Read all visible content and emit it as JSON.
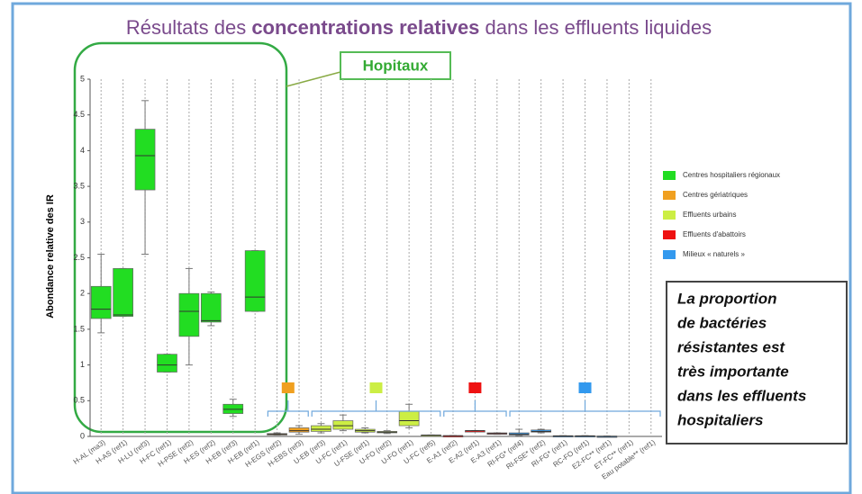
{
  "chart_data": {
    "type": "box",
    "title": [
      "Résultats des ",
      "concentrations relatives",
      " dans les effluents liquides"
    ],
    "y_label": "Abondance relative des IR",
    "ylim": [
      0,
      5
    ],
    "yticks": [
      0,
      0.5,
      1,
      1.5,
      2,
      2.5,
      3,
      3.5,
      4,
      4.5,
      5
    ],
    "grid": true,
    "groups": [
      {
        "name": "Centres hospitaliers régionaux",
        "color": "#22dd22"
      },
      {
        "name": "Centres gériatriques",
        "color": "#f0a020"
      },
      {
        "name": "Effluents urbains",
        "color": "#ccee44"
      },
      {
        "name": "Effluents d'abattoirs",
        "color": "#ee1111"
      },
      {
        "name": "Milieux « naturels »",
        "color": "#3399ee"
      }
    ],
    "categories": [
      "H-AL (ma3)",
      "H-AS (ref1)",
      "H-LU (ref3)",
      "H-FC (ref1)",
      "H-PSE (ref2)",
      "H-ES (ref2)",
      "H-EB (ref3)",
      "H-EB (ref1)",
      "H-EGS (ref2)",
      "H-EBS (ref3)",
      "U-EB (ref3)",
      "U-FC (ref1)",
      "U-FSE (ref1)",
      "U-FO (ref2)",
      "U-FO (ref1)",
      "U-FC (ref5)",
      "E-A1 (ref2)",
      "E-A2 (ref1)",
      "E-A3 (ref1)",
      "RI-FG* (ref4)",
      "RI-FSE* (ref2)",
      "RI-FG* (ref1)",
      "RC-FO (ref1)",
      "E2-FC** (ref1)",
      "ET-FC** (ref1)",
      "Eau potable** (ref1)"
    ],
    "boxes": [
      {
        "group": 0,
        "min": 1.45,
        "q1": 1.65,
        "median": 1.78,
        "q3": 2.1,
        "max": 2.55
      },
      {
        "group": 0,
        "min": 1.68,
        "q1": 1.68,
        "median": 1.7,
        "q3": 2.35,
        "max": 2.35
      },
      {
        "group": 0,
        "min": 2.55,
        "q1": 3.45,
        "median": 3.93,
        "q3": 4.3,
        "max": 4.7
      },
      {
        "group": 0,
        "min": 0.9,
        "q1": 0.9,
        "median": 1.0,
        "q3": 1.15,
        "max": 1.15
      },
      {
        "group": 0,
        "min": 1.0,
        "q1": 1.4,
        "median": 1.75,
        "q3": 2.0,
        "max": 2.35
      },
      {
        "group": 0,
        "min": 1.55,
        "q1": 1.6,
        "median": 1.62,
        "q3": 2.0,
        "max": 2.02
      },
      {
        "group": 0,
        "min": 0.28,
        "q1": 0.32,
        "median": 0.38,
        "q3": 0.45,
        "max": 0.52
      },
      {
        "group": 0,
        "min": 1.75,
        "q1": 1.75,
        "median": 1.95,
        "q3": 2.6,
        "max": 2.6
      },
      {
        "group": 1,
        "min": 0.02,
        "q1": 0.02,
        "median": 0.03,
        "q3": 0.04,
        "max": 0.05
      },
      {
        "group": 1,
        "min": 0.03,
        "q1": 0.06,
        "median": 0.08,
        "q3": 0.12,
        "max": 0.15
      },
      {
        "group": 2,
        "min": 0.05,
        "q1": 0.07,
        "median": 0.1,
        "q3": 0.15,
        "max": 0.18
      },
      {
        "group": 2,
        "min": 0.08,
        "q1": 0.1,
        "median": 0.15,
        "q3": 0.22,
        "max": 0.3
      },
      {
        "group": 2,
        "min": 0.05,
        "q1": 0.06,
        "median": 0.08,
        "q3": 0.1,
        "max": 0.12
      },
      {
        "group": 2,
        "min": 0.04,
        "q1": 0.05,
        "median": 0.06,
        "q3": 0.07,
        "max": 0.08
      },
      {
        "group": 2,
        "min": 0.12,
        "q1": 0.15,
        "median": 0.22,
        "q3": 0.35,
        "max": 0.45
      },
      {
        "group": 2,
        "min": 0.01,
        "q1": 0.01,
        "median": 0.015,
        "q3": 0.02,
        "max": 0.02
      },
      {
        "group": 3,
        "min": 0.01,
        "q1": 0.01,
        "median": 0.01,
        "q3": 0.01,
        "max": 0.01
      },
      {
        "group": 3,
        "min": 0.08,
        "q1": 0.08,
        "median": 0.08,
        "q3": 0.08,
        "max": 0.08
      },
      {
        "group": 3,
        "min": 0.03,
        "q1": 0.03,
        "median": 0.04,
        "q3": 0.05,
        "max": 0.05
      },
      {
        "group": 4,
        "min": 0.01,
        "q1": 0.02,
        "median": 0.03,
        "q3": 0.05,
        "max": 0.1
      },
      {
        "group": 4,
        "min": 0.05,
        "q1": 0.06,
        "median": 0.07,
        "q3": 0.09,
        "max": 0.1
      },
      {
        "group": 4,
        "min": 0.0,
        "q1": 0.0,
        "median": 0.005,
        "q3": 0.01,
        "max": 0.01
      },
      {
        "group": 4,
        "min": 0.0,
        "q1": 0.0,
        "median": 0.005,
        "q3": 0.01,
        "max": 0.01
      },
      {
        "group": 4,
        "min": 0.0,
        "q1": 0.0,
        "median": 0.0,
        "q3": 0.005,
        "max": 0.005
      },
      {
        "group": 4,
        "min": null,
        "q1": null,
        "median": null,
        "q3": null,
        "max": null
      },
      {
        "group": 4,
        "min": null,
        "q1": null,
        "median": null,
        "q3": null,
        "max": null
      }
    ],
    "callout": "Hopitaux",
    "note": [
      "La proportion",
      "de bactéries",
      "résistantes est",
      "très importante",
      "dans les effluents",
      "hospitaliers"
    ]
  }
}
